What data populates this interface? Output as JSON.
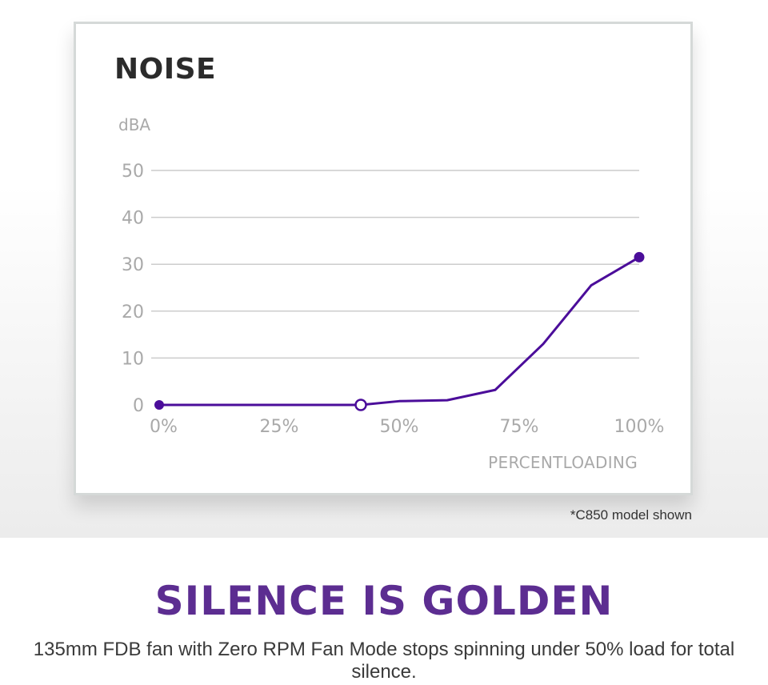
{
  "chart_data": {
    "type": "line",
    "title": "NOISE",
    "ylabel": "dBA",
    "xlabel": "PERCENTLOADING",
    "x_ticks": [
      "0%",
      "25%",
      "50%",
      "75%",
      "100%"
    ],
    "y_ticks": [
      "0",
      "10",
      "20",
      "30",
      "40",
      "50"
    ],
    "xlim": [
      0,
      100
    ],
    "ylim": [
      0,
      50
    ],
    "grid": true,
    "color": "#4b0d9a",
    "x": [
      0,
      42,
      50,
      60,
      70,
      80,
      90,
      100
    ],
    "y": [
      0,
      0,
      0.8,
      1,
      3.2,
      13,
      25.5,
      31.5
    ],
    "open_marker_x": 42
  },
  "footnote": "*C850 model shown",
  "headline": "SILENCE IS GOLDEN",
  "description": "135mm FDB fan with Zero RPM Fan Mode stops spinning under 50% load for total silence."
}
